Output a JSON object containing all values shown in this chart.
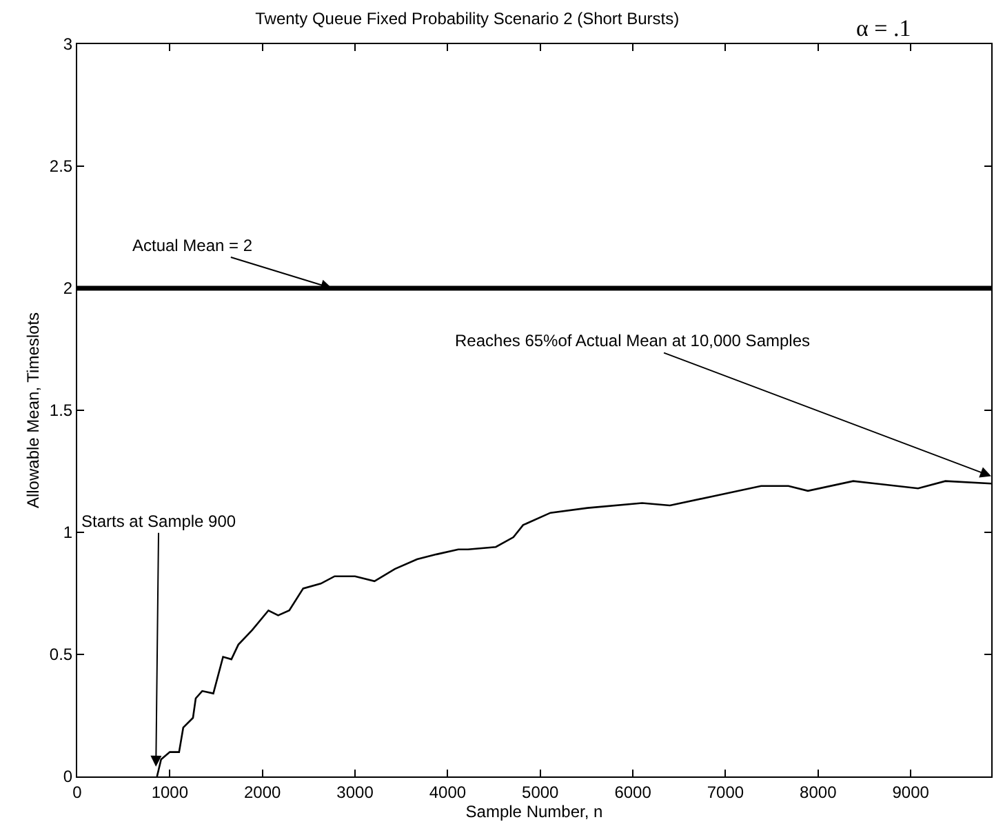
{
  "chart_data": {
    "type": "line",
    "title": "Twenty Queue Fixed Probability Scenario 2 (Short Bursts)",
    "xlabel": "Sample Number, n",
    "ylabel": "Allowable Mean, Timeslots",
    "x": [
      862,
      906,
      1000,
      1100,
      1145,
      1250,
      1280,
      1350,
      1470,
      1575,
      1665,
      1740,
      1890,
      2065,
      2170,
      2290,
      2440,
      2630,
      2780,
      3000,
      3210,
      3430,
      3670,
      3880,
      4115,
      4220,
      4520,
      4710,
      4815,
      5110,
      5510,
      6100,
      6400,
      6890,
      7385,
      7680,
      7890,
      8380,
      9080,
      9375,
      9870
    ],
    "series": [
      {
        "color": "#000000",
        "values": [
          0,
          0.07,
          0.1,
          0.1,
          0.2,
          0.24,
          0.32,
          0.35,
          0.34,
          0.49,
          0.48,
          0.54,
          0.6,
          0.68,
          0.66,
          0.68,
          0.77,
          0.79,
          0.82,
          0.82,
          0.8,
          0.85,
          0.89,
          0.91,
          0.93,
          0.93,
          0.94,
          0.98,
          1.03,
          1.08,
          1.1,
          1.12,
          1.11,
          1.15,
          1.19,
          1.19,
          1.17,
          1.21,
          1.18,
          1.21,
          1.2
        ]
      }
    ],
    "ref_lines": [
      {
        "axis": "y",
        "value": 2,
        "label": "Actual Mean = 2",
        "color": "#000000"
      }
    ],
    "annotations": [
      "α = .1",
      {
        "text": "Starts at Sample 900",
        "x": 850,
        "y": 0.04
      },
      {
        "text": "Reaches 65%of Actual Mean at 10,000 Samples",
        "x": 9870,
        "y": 1.23
      }
    ],
    "xlim": [
      0,
      9870
    ],
    "xticks": [
      0,
      1000,
      2000,
      3000,
      4000,
      5000,
      6000,
      7000,
      8000,
      9000
    ],
    "ylim": [
      0,
      3
    ],
    "yticks": [
      0,
      0.5,
      1,
      1.5,
      2,
      2.5,
      3
    ],
    "marker": "none",
    "line_style": "solid"
  }
}
